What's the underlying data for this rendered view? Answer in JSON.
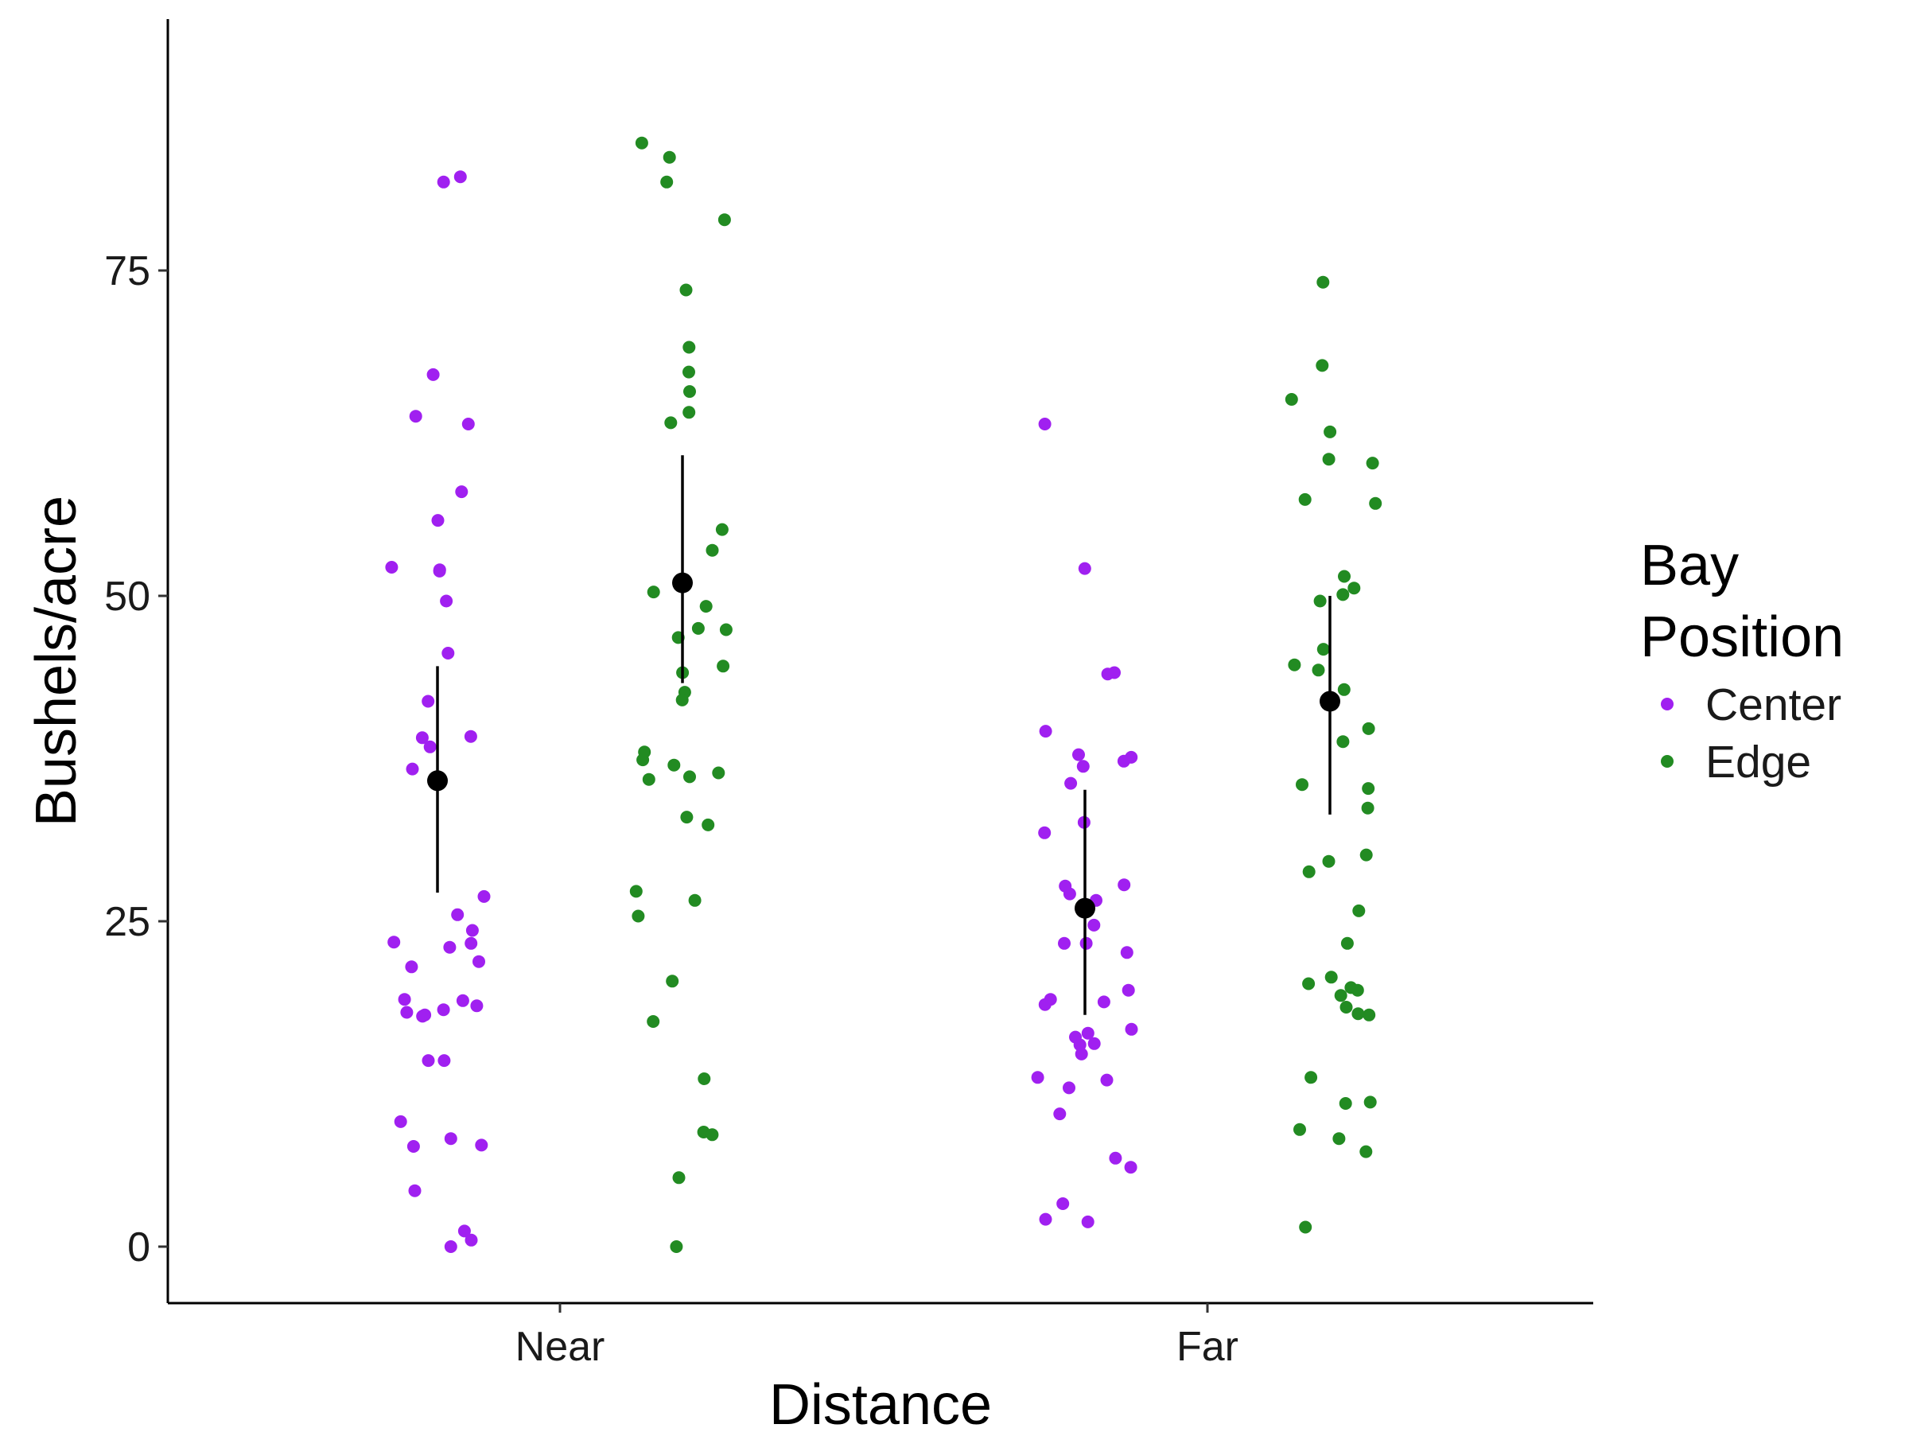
{
  "chart_data": {
    "type": "scatter",
    "title": "",
    "xlabel": "Distance",
    "ylabel": "Bushels/acre",
    "categories": [
      "Near",
      "Far"
    ],
    "ylim": [
      -4.5,
      94
    ],
    "yticks": [
      0,
      25,
      50,
      75
    ],
    "grid": false,
    "legend": {
      "title_lines": [
        "Bay",
        "Position"
      ],
      "placement": "right",
      "entries": [
        {
          "name": "Center",
          "color": "#a020f0"
        },
        {
          "name": "Edge",
          "color": "#228b22"
        }
      ]
    },
    "series": [
      {
        "name": "Center",
        "color": "#a020f0",
        "points": [
          {
            "x": "Near",
            "y": 82.2
          },
          {
            "x": "Near",
            "y": 81.8
          },
          {
            "x": "Near",
            "y": 67.0
          },
          {
            "x": "Near",
            "y": 63.8
          },
          {
            "x": "Near",
            "y": 63.2
          },
          {
            "x": "Near",
            "y": 58.0
          },
          {
            "x": "Near",
            "y": 55.8
          },
          {
            "x": "Near",
            "y": 52.0
          },
          {
            "x": "Near",
            "y": 51.9
          },
          {
            "x": "Near",
            "y": 52.2
          },
          {
            "x": "Near",
            "y": 49.6
          },
          {
            "x": "Near",
            "y": 45.6
          },
          {
            "x": "Near",
            "y": 41.9
          },
          {
            "x": "Near",
            "y": 39.2
          },
          {
            "x": "Near",
            "y": 39.1
          },
          {
            "x": "Near",
            "y": 38.4
          },
          {
            "x": "Near",
            "y": 36.7
          },
          {
            "x": "Near",
            "y": 26.9
          },
          {
            "x": "Near",
            "y": 25.5
          },
          {
            "x": "Near",
            "y": 24.3
          },
          {
            "x": "Near",
            "y": 23.3
          },
          {
            "x": "Near",
            "y": 23.4
          },
          {
            "x": "Near",
            "y": 23.0
          },
          {
            "x": "Near",
            "y": 21.9
          },
          {
            "x": "Near",
            "y": 21.5
          },
          {
            "x": "Near",
            "y": 18.9
          },
          {
            "x": "Near",
            "y": 19.0
          },
          {
            "x": "Near",
            "y": 18.5
          },
          {
            "x": "Near",
            "y": 18.0
          },
          {
            "x": "Near",
            "y": 17.7
          },
          {
            "x": "Near",
            "y": 18.2
          },
          {
            "x": "Near",
            "y": 17.8
          },
          {
            "x": "Near",
            "y": 14.3
          },
          {
            "x": "Near",
            "y": 14.3
          },
          {
            "x": "Near",
            "y": 9.6
          },
          {
            "x": "Near",
            "y": 8.3
          },
          {
            "x": "Near",
            "y": 7.8
          },
          {
            "x": "Near",
            "y": 7.7
          },
          {
            "x": "Near",
            "y": 4.3
          },
          {
            "x": "Near",
            "y": 1.2
          },
          {
            "x": "Near",
            "y": 0.5
          },
          {
            "x": "Near",
            "y": 0.0
          },
          {
            "x": "Far",
            "y": 63.2
          },
          {
            "x": "Far",
            "y": 52.1
          },
          {
            "x": "Far",
            "y": 44.1
          },
          {
            "x": "Far",
            "y": 44.0
          },
          {
            "x": "Far",
            "y": 39.6
          },
          {
            "x": "Far",
            "y": 37.8
          },
          {
            "x": "Far",
            "y": 37.6
          },
          {
            "x": "Far",
            "y": 37.3
          },
          {
            "x": "Far",
            "y": 36.9
          },
          {
            "x": "Far",
            "y": 35.6
          },
          {
            "x": "Far",
            "y": 32.6
          },
          {
            "x": "Far",
            "y": 31.8
          },
          {
            "x": "Far",
            "y": 27.8
          },
          {
            "x": "Far",
            "y": 27.7
          },
          {
            "x": "Far",
            "y": 27.1
          },
          {
            "x": "Far",
            "y": 26.6
          },
          {
            "x": "Far",
            "y": 24.7
          },
          {
            "x": "Far",
            "y": 23.3
          },
          {
            "x": "Far",
            "y": 23.3
          },
          {
            "x": "Far",
            "y": 22.6
          },
          {
            "x": "Far",
            "y": 19.7
          },
          {
            "x": "Far",
            "y": 19.0
          },
          {
            "x": "Far",
            "y": 18.8
          },
          {
            "x": "Far",
            "y": 18.6
          },
          {
            "x": "Far",
            "y": 16.7
          },
          {
            "x": "Far",
            "y": 16.4
          },
          {
            "x": "Far",
            "y": 16.1
          },
          {
            "x": "Far",
            "y": 15.6
          },
          {
            "x": "Far",
            "y": 15.5
          },
          {
            "x": "Far",
            "y": 14.8
          },
          {
            "x": "Far",
            "y": 13.0
          },
          {
            "x": "Far",
            "y": 12.8
          },
          {
            "x": "Far",
            "y": 12.2
          },
          {
            "x": "Far",
            "y": 10.2
          },
          {
            "x": "Far",
            "y": 6.8
          },
          {
            "x": "Far",
            "y": 6.1
          },
          {
            "x": "Far",
            "y": 3.3
          },
          {
            "x": "Far",
            "y": 2.1
          },
          {
            "x": "Far",
            "y": 1.9
          }
        ]
      },
      {
        "name": "Edge",
        "color": "#228b22",
        "points": [
          {
            "x": "Near",
            "y": 84.8
          },
          {
            "x": "Near",
            "y": 83.7
          },
          {
            "x": "Near",
            "y": 81.8
          },
          {
            "x": "Near",
            "y": 78.9
          },
          {
            "x": "Near",
            "y": 73.5
          },
          {
            "x": "Near",
            "y": 69.1
          },
          {
            "x": "Near",
            "y": 67.2
          },
          {
            "x": "Near",
            "y": 65.7
          },
          {
            "x": "Near",
            "y": 64.1
          },
          {
            "x": "Near",
            "y": 63.3
          },
          {
            "x": "Near",
            "y": 55.1
          },
          {
            "x": "Near",
            "y": 53.5
          },
          {
            "x": "Near",
            "y": 50.3
          },
          {
            "x": "Near",
            "y": 49.2
          },
          {
            "x": "Near",
            "y": 47.5
          },
          {
            "x": "Near",
            "y": 47.4
          },
          {
            "x": "Near",
            "y": 46.8
          },
          {
            "x": "Near",
            "y": 44.6
          },
          {
            "x": "Near",
            "y": 44.1
          },
          {
            "x": "Near",
            "y": 42.6
          },
          {
            "x": "Near",
            "y": 42.0
          },
          {
            "x": "Near",
            "y": 38.0
          },
          {
            "x": "Near",
            "y": 37.4
          },
          {
            "x": "Near",
            "y": 37.0
          },
          {
            "x": "Near",
            "y": 36.4
          },
          {
            "x": "Near",
            "y": 36.1
          },
          {
            "x": "Near",
            "y": 35.9
          },
          {
            "x": "Near",
            "y": 33.0
          },
          {
            "x": "Near",
            "y": 32.4
          },
          {
            "x": "Near",
            "y": 27.3
          },
          {
            "x": "Near",
            "y": 26.6
          },
          {
            "x": "Near",
            "y": 25.4
          },
          {
            "x": "Near",
            "y": 20.4
          },
          {
            "x": "Near",
            "y": 17.3
          },
          {
            "x": "Near",
            "y": 12.9
          },
          {
            "x": "Near",
            "y": 8.8
          },
          {
            "x": "Near",
            "y": 8.6
          },
          {
            "x": "Near",
            "y": 5.3
          },
          {
            "x": "Near",
            "y": 0.0
          },
          {
            "x": "Far",
            "y": 74.1
          },
          {
            "x": "Far",
            "y": 67.7
          },
          {
            "x": "Far",
            "y": 65.1
          },
          {
            "x": "Far",
            "y": 62.6
          },
          {
            "x": "Far",
            "y": 60.5
          },
          {
            "x": "Far",
            "y": 60.2
          },
          {
            "x": "Far",
            "y": 57.4
          },
          {
            "x": "Far",
            "y": 57.1
          },
          {
            "x": "Far",
            "y": 51.5
          },
          {
            "x": "Far",
            "y": 50.6
          },
          {
            "x": "Far",
            "y": 50.1
          },
          {
            "x": "Far",
            "y": 49.6
          },
          {
            "x": "Far",
            "y": 45.9
          },
          {
            "x": "Far",
            "y": 44.7
          },
          {
            "x": "Far",
            "y": 44.3
          },
          {
            "x": "Far",
            "y": 42.8
          },
          {
            "x": "Far",
            "y": 39.8
          },
          {
            "x": "Far",
            "y": 38.8
          },
          {
            "x": "Far",
            "y": 35.5
          },
          {
            "x": "Far",
            "y": 35.2
          },
          {
            "x": "Far",
            "y": 33.7
          },
          {
            "x": "Far",
            "y": 30.1
          },
          {
            "x": "Far",
            "y": 29.6
          },
          {
            "x": "Far",
            "y": 28.8
          },
          {
            "x": "Far",
            "y": 25.8
          },
          {
            "x": "Far",
            "y": 23.3
          },
          {
            "x": "Far",
            "y": 20.7
          },
          {
            "x": "Far",
            "y": 20.2
          },
          {
            "x": "Far",
            "y": 19.9
          },
          {
            "x": "Far",
            "y": 19.7
          },
          {
            "x": "Far",
            "y": 19.3
          },
          {
            "x": "Far",
            "y": 18.4
          },
          {
            "x": "Far",
            "y": 17.9
          },
          {
            "x": "Far",
            "y": 17.8
          },
          {
            "x": "Far",
            "y": 13.0
          },
          {
            "x": "Far",
            "y": 11.1
          },
          {
            "x": "Far",
            "y": 11.0
          },
          {
            "x": "Far",
            "y": 9.0
          },
          {
            "x": "Far",
            "y": 8.3
          },
          {
            "x": "Far",
            "y": 7.3
          },
          {
            "x": "Far",
            "y": 1.5
          }
        ]
      }
    ],
    "summary": {
      "color": "#000000",
      "points": [
        {
          "x": "Near",
          "group": "Center",
          "mean": 35.8,
          "low": 27.2,
          "high": 44.6
        },
        {
          "x": "Near",
          "group": "Edge",
          "mean": 51.0,
          "low": 43.3,
          "high": 60.8
        },
        {
          "x": "Far",
          "group": "Center",
          "mean": 26.0,
          "low": 17.8,
          "high": 35.1
        },
        {
          "x": "Far",
          "group": "Edge",
          "mean": 41.9,
          "low": 33.2,
          "high": 50.0
        }
      ]
    }
  }
}
